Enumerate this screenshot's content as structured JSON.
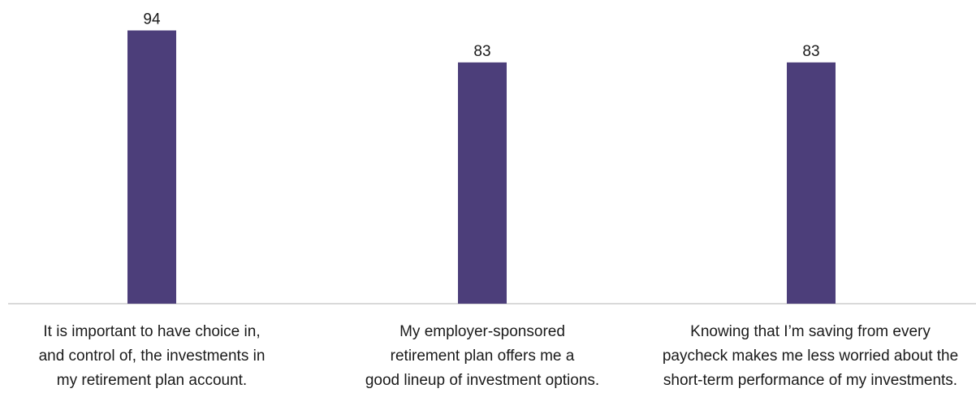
{
  "chart_data": {
    "type": "bar",
    "categories": [
      [
        "It is important to have choice in,",
        "and control of, the investments in",
        "my retirement plan account."
      ],
      [
        "My employer-sponsored",
        "retirement plan offers me a",
        "good lineup of investment options."
      ],
      [
        "Knowing that I’m saving from every",
        "paycheck makes me less worried about the",
        "short-term performance of my investments."
      ]
    ],
    "values": [
      94,
      83,
      83
    ],
    "value_labels": [
      "94",
      "83",
      "83"
    ],
    "ylim": [
      0,
      100
    ],
    "grid": false,
    "colors": {
      "bar": "#4c3e7a",
      "baseline": "#d9d9d9",
      "text": "#1a1a1a"
    }
  }
}
